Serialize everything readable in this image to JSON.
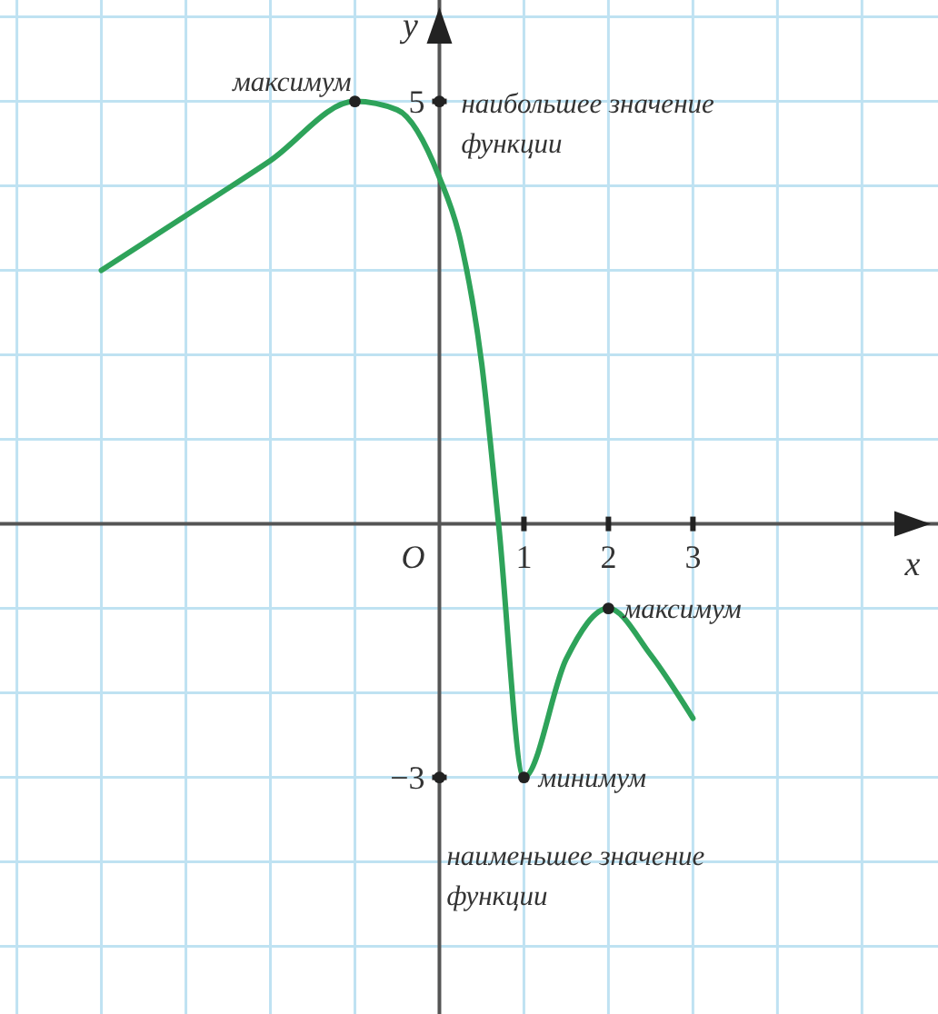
{
  "chart_data": {
    "type": "line",
    "xlabel": "x",
    "ylabel": "y",
    "series": [
      {
        "color": "#2ea35a",
        "x": [
          -4,
          -3,
          -2,
          -1,
          -0.5,
          0,
          0.25,
          0.5,
          0.7,
          1,
          1.5,
          2,
          2.5,
          3
        ],
        "values": [
          3,
          3.65,
          4.3,
          5,
          4.9,
          4.1,
          3.35,
          1.9,
          0,
          -3,
          -1.6,
          -1,
          -1.55,
          -2.3
        ]
      }
    ],
    "xlim": [
      -5.2,
      5.9
    ],
    "ylim": [
      -5.8,
      6.2
    ],
    "xticks": [
      {
        "value": -5,
        "label": null
      },
      {
        "value": -4,
        "label": null
      },
      {
        "value": -3,
        "label": null
      },
      {
        "value": -2,
        "label": null
      },
      {
        "value": -1,
        "label": null
      },
      {
        "value": 0,
        "label": null
      },
      1,
      2,
      3,
      {
        "value": 4,
        "label": null
      },
      {
        "value": 5,
        "label": null
      }
    ],
    "yticks": [
      {
        "value": -5,
        "label": null
      },
      {
        "value": -4,
        "label": null
      },
      -3,
      {
        "value": -2,
        "label": null
      },
      {
        "value": -1,
        "label": null
      },
      {
        "value": 0,
        "label": null
      },
      {
        "value": 1,
        "label": null
      },
      {
        "value": 2,
        "label": null
      },
      {
        "value": 3,
        "label": null
      },
      {
        "value": 4,
        "label": null
      },
      5,
      {
        "value": 6,
        "label": null
      }
    ],
    "grid": true,
    "marker": "none",
    "line_style": "solid",
    "annotations": [
      "O",
      {
        "text": "максимум",
        "x": -1,
        "y": 5
      },
      {
        "text": "наибольшее значение функции",
        "x": 0,
        "y": 5
      },
      {
        "text": "минимум",
        "x": 1,
        "y": -3
      },
      {
        "text": "максимум",
        "x": 2,
        "y": -1
      },
      {
        "text": "наименьшее значение функции",
        "x": 0,
        "y": -3
      }
    ]
  }
}
